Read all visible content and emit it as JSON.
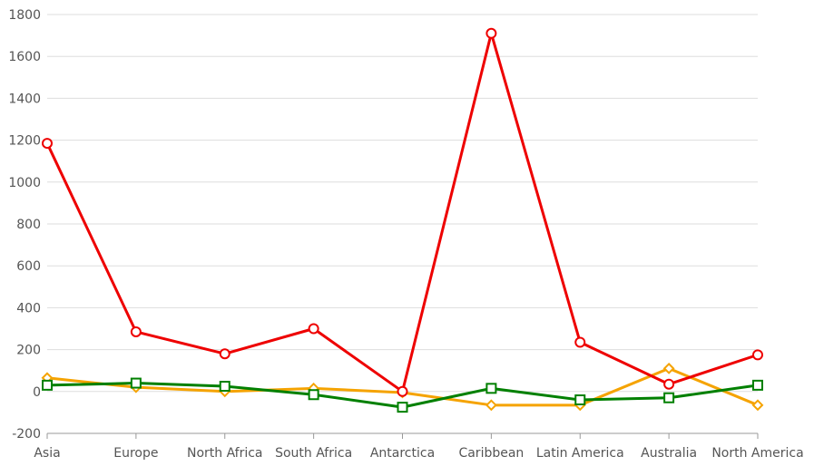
{
  "chart_data": {
    "type": "line",
    "categories": [
      "Asia",
      "Europe",
      "North Africa",
      "South Africa",
      "Antarctica",
      "Caribbean",
      "Latin America",
      "Australia",
      "North America"
    ],
    "ylim": [
      -200,
      1800
    ],
    "yticks": [
      -200,
      0,
      200,
      400,
      600,
      800,
      1000,
      1200,
      1400,
      1600,
      1800
    ],
    "grid": true,
    "legend": "none",
    "series": [
      {
        "color": "#ee0000",
        "marker": "circle",
        "values": [
          1185,
          285,
          180,
          300,
          0,
          1710,
          235,
          35,
          175
        ]
      },
      {
        "color": "#f5a300",
        "marker": "diamond",
        "values": [
          65,
          20,
          0,
          15,
          -5,
          -65,
          -65,
          110,
          -65
        ]
      },
      {
        "color": "#008000",
        "marker": "square",
        "values": [
          30,
          40,
          25,
          -15,
          -75,
          15,
          -40,
          -30,
          30
        ]
      }
    ]
  }
}
